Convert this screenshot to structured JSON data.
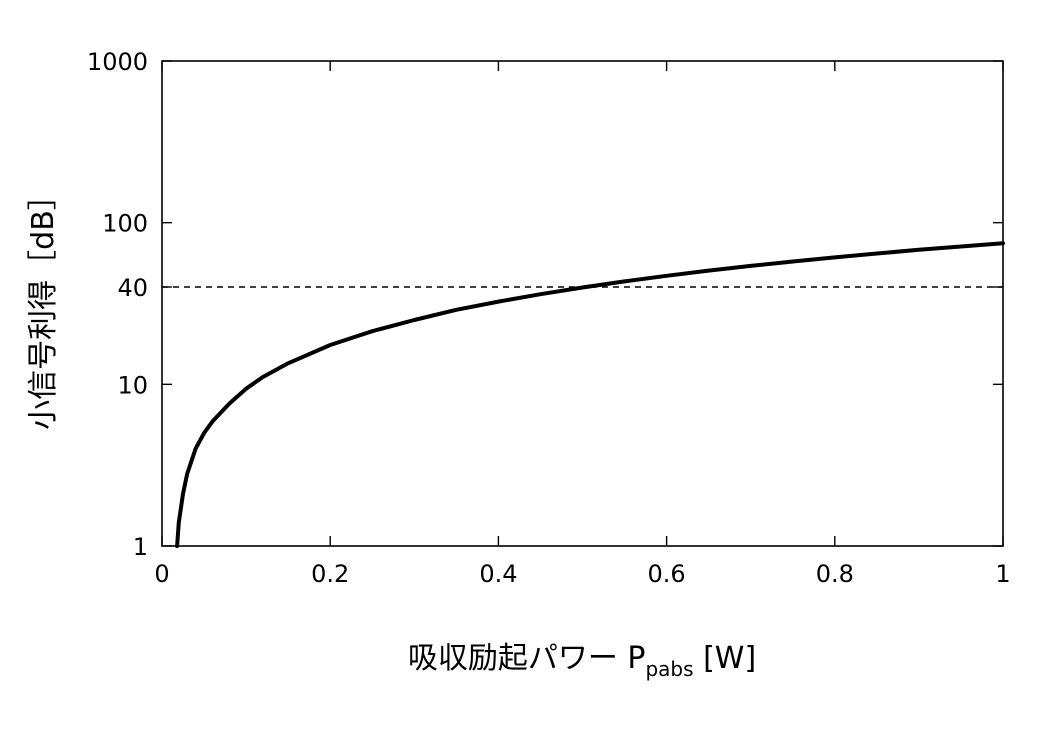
{
  "chart_data": {
    "type": "line",
    "xlabel": {
      "main": "吸収励起パワー P",
      "subscript": "pabs",
      "unit": " [W]"
    },
    "ylabel": "小信号利得［dB］",
    "xlim": [
      0,
      1
    ],
    "ylim": [
      1,
      1000
    ],
    "yscale": "log",
    "grid": false,
    "x_ticks": [
      "0",
      "0.2",
      "0.4",
      "0.6",
      "0.8",
      "1"
    ],
    "y_ticks": [
      "1",
      "10",
      "40",
      "100",
      "1000"
    ],
    "y_tick_values": [
      1,
      10,
      40,
      100,
      1000
    ],
    "reference_line": {
      "y": 40,
      "style": "dashed"
    },
    "series": [
      {
        "x": [
          0.018,
          0.02,
          0.025,
          0.03,
          0.04,
          0.05,
          0.06,
          0.08,
          0.1,
          0.12,
          0.15,
          0.2,
          0.25,
          0.3,
          0.35,
          0.4,
          0.45,
          0.5,
          0.55,
          0.6,
          0.65,
          0.7,
          0.75,
          0.8,
          0.85,
          0.9,
          0.95,
          1.0
        ],
        "y": [
          1.0,
          1.4,
          2.1,
          2.8,
          4.0,
          5.0,
          5.9,
          7.6,
          9.4,
          11.1,
          13.5,
          17.5,
          21.3,
          25.0,
          28.9,
          32.5,
          36.1,
          39.7,
          43.3,
          46.9,
          50.5,
          54.0,
          57.5,
          61.0,
          64.5,
          67.9,
          71.2,
          74.5
        ]
      }
    ]
  }
}
